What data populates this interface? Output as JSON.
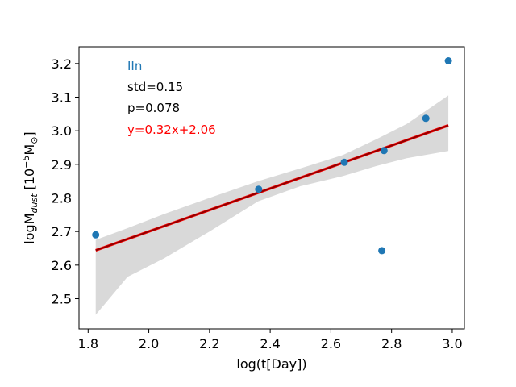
{
  "chart_data": {
    "type": "scatter",
    "title": "",
    "xlabel": "log(t[Day])",
    "ylabel_main": "logM",
    "ylabel_sub": "dust",
    "ylabel_unit_open": " [10",
    "ylabel_unit_exp": "−5",
    "ylabel_unit_base": "M",
    "ylabel_unit_sym": "⊙",
    "ylabel_unit_close": "]",
    "xlim": [
      1.77,
      3.04
    ],
    "ylim": [
      2.41,
      3.25
    ],
    "xticks": [
      1.8,
      2.0,
      2.2,
      2.4,
      2.6,
      2.8,
      3.0
    ],
    "xtick_labels": [
      "1.8",
      "2.0",
      "2.2",
      "2.4",
      "2.6",
      "2.8",
      "3.0"
    ],
    "yticks": [
      2.5,
      2.6,
      2.7,
      2.8,
      2.9,
      3.0,
      3.1,
      3.2
    ],
    "ytick_labels": [
      "2.5",
      "2.6",
      "2.7",
      "2.8",
      "2.9",
      "3.0",
      "3.1",
      "3.2"
    ],
    "points": {
      "x": [
        1.825,
        2.362,
        2.644,
        2.775,
        2.768,
        2.913,
        2.987
      ],
      "y": [
        2.69,
        2.826,
        2.906,
        2.941,
        2.643,
        3.037,
        3.208
      ],
      "color": "#1f77b4"
    },
    "fit": {
      "slope": 0.32,
      "intercept": 2.06,
      "x_range": [
        1.825,
        2.987
      ],
      "color": "#8b0000",
      "edge_color": "#ff0000"
    },
    "confidence_band": {
      "x": [
        1.825,
        1.93,
        2.05,
        2.2,
        2.36,
        2.5,
        2.64,
        2.75,
        2.85,
        2.987
      ],
      "upper": [
        2.675,
        2.71,
        2.752,
        2.8,
        2.85,
        2.888,
        2.928,
        2.975,
        3.02,
        3.105
      ],
      "lower": [
        2.452,
        2.565,
        2.62,
        2.7,
        2.79,
        2.835,
        2.865,
        2.895,
        2.918,
        2.94
      ],
      "color": "#d9d9d9"
    },
    "annotations": {
      "category": "IIn",
      "category_color": "#1f77b4",
      "std": "std=0.15",
      "p": "p=0.078",
      "p_color": "#000000",
      "equation": "y=0.32x+2.06",
      "equation_color": "#ff0000"
    }
  }
}
